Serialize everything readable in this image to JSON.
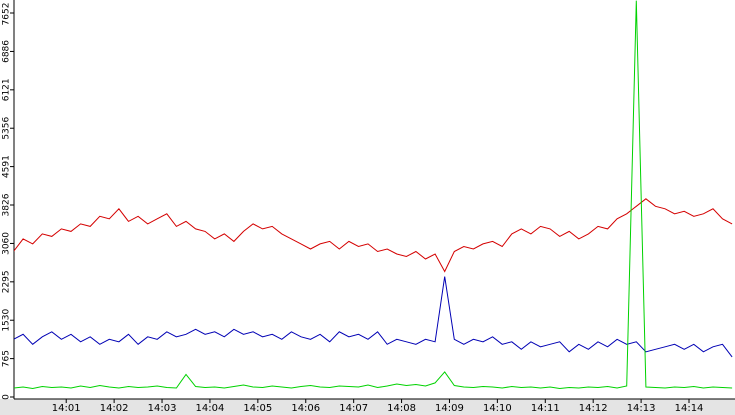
{
  "chart_data": {
    "type": "line",
    "x": [
      -0.1,
      0.1,
      0.3,
      0.5,
      0.7,
      0.9,
      1.1,
      1.3,
      1.5,
      1.7,
      1.9,
      2.1,
      2.3,
      2.5,
      2.7,
      2.9,
      3.1,
      3.3,
      3.5,
      3.7,
      3.9,
      4.1,
      4.3,
      4.5,
      4.7,
      4.9,
      5.1,
      5.3,
      5.5,
      5.7,
      5.9,
      6.1,
      6.3,
      6.5,
      6.7,
      6.9,
      7.1,
      7.3,
      7.5,
      7.7,
      7.9,
      8.1,
      8.3,
      8.5,
      8.7,
      8.9,
      9.1,
      9.3,
      9.5,
      9.7,
      9.9,
      10.1,
      10.3,
      10.5,
      10.7,
      10.9,
      11.1,
      11.3,
      11.5,
      11.7,
      11.9,
      12.1,
      12.3,
      12.5,
      12.7,
      12.9,
      13.1,
      13.3,
      13.5,
      13.7,
      13.9,
      14.1,
      14.3,
      14.5,
      14.7,
      14.9
    ],
    "series": [
      {
        "color": "#d40000",
        "values": [
          2900,
          3150,
          3050,
          3250,
          3200,
          3350,
          3300,
          3450,
          3400,
          3600,
          3550,
          3750,
          3500,
          3600,
          3450,
          3550,
          3650,
          3400,
          3500,
          3350,
          3300,
          3150,
          3250,
          3100,
          3300,
          3450,
          3350,
          3400,
          3250,
          3150,
          3050,
          2950,
          3050,
          3100,
          2950,
          3100,
          3000,
          3050,
          2900,
          2950,
          2850,
          2800,
          2900,
          2750,
          2850,
          2500,
          2900,
          3000,
          2950,
          3050,
          3100,
          3000,
          3250,
          3350,
          3250,
          3400,
          3350,
          3200,
          3300,
          3150,
          3250,
          3400,
          3350,
          3550,
          3650,
          3800,
          3950,
          3800,
          3750,
          3650,
          3700,
          3600,
          3650,
          3750,
          3550,
          3450
        ]
      },
      {
        "color": "#0000b4",
        "values": [
          1150,
          1250,
          1050,
          1200,
          1300,
          1150,
          1250,
          1100,
          1200,
          1050,
          1150,
          1100,
          1250,
          1050,
          1200,
          1150,
          1300,
          1200,
          1250,
          1350,
          1250,
          1300,
          1200,
          1350,
          1250,
          1300,
          1200,
          1250,
          1150,
          1300,
          1200,
          1150,
          1250,
          1100,
          1300,
          1200,
          1250,
          1150,
          1300,
          1050,
          1150,
          1100,
          1050,
          1150,
          1100,
          2400,
          1150,
          1050,
          1150,
          1100,
          1200,
          1050,
          1100,
          950,
          1100,
          1000,
          1050,
          1100,
          900,
          1050,
          950,
          1100,
          1000,
          1150,
          1050,
          1100,
          900,
          950,
          1000,
          1050,
          950,
          1050,
          900,
          1000,
          1050,
          800
        ]
      },
      {
        "color": "#00d200",
        "values": [
          180,
          200,
          170,
          210,
          190,
          200,
          180,
          220,
          190,
          230,
          200,
          180,
          210,
          190,
          200,
          220,
          190,
          180,
          450,
          210,
          190,
          200,
          180,
          210,
          240,
          200,
          190,
          220,
          200,
          180,
          210,
          230,
          200,
          190,
          220,
          210,
          200,
          240,
          190,
          220,
          260,
          230,
          250,
          220,
          280,
          500,
          230,
          200,
          190,
          210,
          200,
          180,
          210,
          190,
          200,
          180,
          200,
          170,
          190,
          180,
          200,
          190,
          210,
          180,
          220,
          7900,
          200,
          190,
          180,
          200,
          190,
          210,
          180,
          200,
          190,
          180
        ]
      }
    ],
    "xlim": [
      -0.09,
      14.96
    ],
    "xticks": [
      {
        "value": 1,
        "label": "14:01"
      },
      {
        "value": 2,
        "label": "14:02"
      },
      {
        "value": 3,
        "label": "14:03"
      },
      {
        "value": 4,
        "label": "14:04"
      },
      {
        "value": 5,
        "label": "14:05"
      },
      {
        "value": 6,
        "label": "14:06"
      },
      {
        "value": 7,
        "label": "14:07"
      },
      {
        "value": 8,
        "label": "14:08"
      },
      {
        "value": 9,
        "label": "14:09"
      },
      {
        "value": 10,
        "label": "14:10"
      },
      {
        "value": 11,
        "label": "14:11"
      },
      {
        "value": 12,
        "label": "14:12"
      },
      {
        "value": 13,
        "label": "14:13"
      },
      {
        "value": 14,
        "label": "14:14"
      }
    ],
    "ylim": [
      0,
      7911
    ],
    "yticks": [
      0,
      765,
      1530,
      2295,
      3060,
      3826,
      4591,
      5356,
      6121,
      6886,
      7652
    ]
  }
}
